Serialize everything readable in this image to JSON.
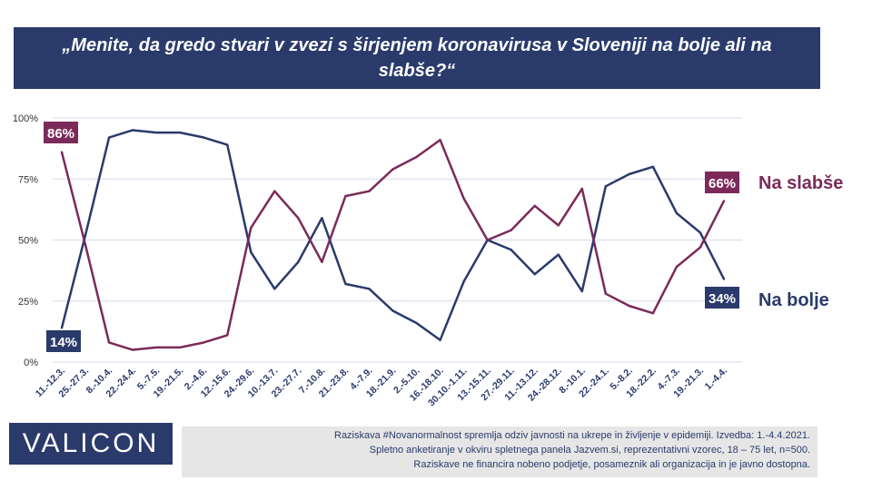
{
  "title": "„Menite, da gredo stvari  v zvezi s širjenjem koronavirusa v Sloveniji na bolje ali na slabše?“",
  "logo": "VALICON",
  "footnote": [
    "Raziskava #Novanormalnost spremlja odziv javnosti na ukrepe in življenje v epidemiji. Izvedba: 1.-4.4.2021.",
    "Spletno anketiranje v okviru spletnega panela Jazvem.si, reprezentativni vzorec, 18 – 75 let, n=500.",
    "Raziskave ne financira nobeno podjetje, posameznik ali organizacija in je javno dostopna."
  ],
  "colors": {
    "bolje": "#2a3a6b",
    "slabse": "#7b2a5a",
    "grid": "#d9d9ee",
    "axis_text": "#2a3a6b"
  },
  "chart_data": {
    "type": "line",
    "categories": [
      "11.-12.3.",
      "25.-27.3.",
      "8.-10.4.",
      "22.-24.4.",
      "5.-7.5.",
      "19.-21.5.",
      "2.-4.6.",
      "12.-15.6.",
      "24.-29.6.",
      "10.-13.7.",
      "23.-27.7.",
      "7.-10.8.",
      "21.-23.8.",
      "4.-7.9.",
      "18.-21.9.",
      "2.-5.10.",
      "16.-18.10.",
      "30.10.-1.11.",
      "13.-15.11.",
      "27.-29.11.",
      "11.-13.12.",
      "24.-28.12.",
      "8.-10.1.",
      "22.-24.1.",
      "5.-8.2.",
      "18.-22.2.",
      "4.-7.3.",
      "19.-21.3.",
      "1.-4.4."
    ],
    "yticks": [
      "0%",
      "25%",
      "50%",
      "75%",
      "100%"
    ],
    "ylim": [
      0,
      100
    ],
    "grid": true,
    "series": [
      {
        "name": "Na bolje",
        "values": [
          14,
          52,
          92,
          95,
          94,
          94,
          92,
          89,
          45,
          30,
          41,
          59,
          32,
          30,
          21,
          16,
          9,
          33,
          50,
          46,
          36,
          44,
          29,
          72,
          77,
          80,
          61,
          53,
          34
        ],
        "first_label": "14%",
        "last_label": "34%"
      },
      {
        "name": "Na slabše",
        "values": [
          86,
          48,
          8,
          5,
          6,
          6,
          8,
          11,
          55,
          70,
          59,
          41,
          68,
          70,
          79,
          84,
          91,
          67,
          50,
          54,
          64,
          56,
          71,
          28,
          23,
          20,
          39,
          47,
          66
        ],
        "first_label": "86%",
        "last_label": "66%"
      }
    ]
  }
}
